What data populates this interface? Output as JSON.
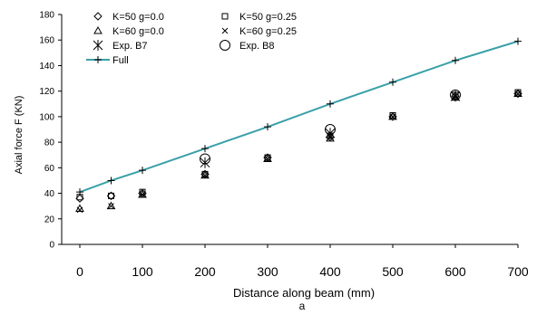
{
  "chart_data": {
    "type": "scatter",
    "title": "",
    "xlabel": "Distance along beam (mm)",
    "ylabel": "Axial force F (KN)",
    "panel_label": "a",
    "xlim": [
      0,
      700
    ],
    "ylim": [
      0,
      180
    ],
    "xticks": [
      0,
      100,
      200,
      300,
      400,
      500,
      600,
      700
    ],
    "xtick_labels": [
      "0",
      "100",
      "200",
      "300",
      "400",
      "500",
      "600",
      "700"
    ],
    "yticks": [
      0,
      20,
      40,
      60,
      80,
      100,
      120,
      140,
      160,
      180
    ],
    "ytick_labels": [
      "0",
      "20",
      "40",
      "60",
      "80",
      "100",
      "120",
      "140",
      "160",
      "180"
    ],
    "grid": false,
    "legend_placement": "top-left",
    "line_color": "#3aa0a8",
    "series": [
      {
        "name": "K=50 g=0.0",
        "marker": "diamond",
        "x": [
          0,
          50,
          100,
          200,
          300,
          400,
          500,
          600,
          700
        ],
        "y": [
          36,
          38,
          40,
          55,
          68,
          84,
          100,
          116,
          118
        ]
      },
      {
        "name": "K=50 g=0.25",
        "marker": "square",
        "x": [
          0,
          50,
          100,
          200,
          300,
          400,
          500,
          600,
          700
        ],
        "y": [
          37,
          38,
          41,
          55,
          68,
          85,
          101,
          117,
          119
        ]
      },
      {
        "name": "K=60 g=0.0",
        "marker": "triangle",
        "x": [
          0,
          50,
          100,
          200,
          300,
          400,
          500,
          600,
          700
        ],
        "y": [
          28,
          30,
          39,
          54,
          67,
          83,
          100,
          115,
          118
        ]
      },
      {
        "name": "K=60 g=0.25",
        "marker": "x",
        "x": [
          0,
          50,
          100,
          200,
          300,
          400,
          500,
          600,
          700
        ],
        "y": [
          27,
          30,
          39,
          54,
          67,
          84,
          100,
          116,
          118
        ]
      },
      {
        "name": "Exp. B7",
        "marker": "asterisk",
        "x": [
          200,
          400,
          600
        ],
        "y": [
          64,
          87,
          116
        ]
      },
      {
        "name": "Exp. B8",
        "marker": "circle",
        "x": [
          200,
          400,
          600
        ],
        "y": [
          67,
          90,
          117
        ]
      },
      {
        "name": "Full",
        "marker": "plus-line",
        "x": [
          0,
          50,
          100,
          200,
          300,
          400,
          500,
          600,
          700
        ],
        "y": [
          41,
          50,
          58,
          75,
          92,
          110,
          127,
          144,
          159
        ]
      }
    ]
  }
}
